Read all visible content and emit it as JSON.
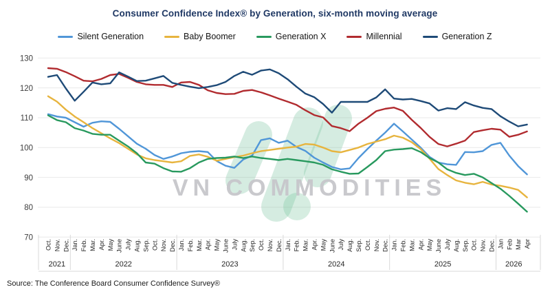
{
  "title": "Consumer Confidence Index® by Generation, six-month moving average",
  "source": "Source: The Conference Board Consumer Confidence Survey®",
  "watermark": {
    "text": "VN COMMODITIES",
    "logo_color": "#77c39d"
  },
  "chart_data": {
    "type": "line",
    "title": "Consumer Confidence Index® by Generation, six-month moving average",
    "xlabel": "",
    "ylabel": "",
    "ylim": [
      70,
      130
    ],
    "y_ticks": [
      70,
      80,
      90,
      100,
      110,
      120,
      130
    ],
    "grid": true,
    "legend_position": "top",
    "x_labels": [
      "Oct.",
      "Nov.",
      "Dec.",
      "Jan.",
      "Feb.",
      "Mar.",
      "Apr.",
      "May",
      "June",
      "July",
      "Aug.",
      "Sep.",
      "Oct.",
      "Nov.",
      "Dec.",
      "Jan.",
      "Feb.",
      "Mar.",
      "Apr.",
      "May",
      "June",
      "July",
      "Aug.",
      "Sep.",
      "Oct.",
      "Nov.",
      "Dec.",
      "Jan.",
      "Feb.",
      "Mar.",
      "Apr.",
      "May",
      "June",
      "July",
      "Aug.",
      "Sep.",
      "Oct.",
      "Nov.",
      "Dec.",
      "Jan.",
      "Feb.",
      "Mar.",
      "Apr.",
      "May",
      "June",
      "July",
      "Aug.",
      "Sep.",
      "Oct.",
      "Nov.",
      "Dec.",
      "Jan",
      "Feb",
      "Mar",
      "Apr"
    ],
    "years": [
      {
        "label": "2021",
        "months": 3
      },
      {
        "label": "2022",
        "months": 12
      },
      {
        "label": "2023",
        "months": 12
      },
      {
        "label": "2024",
        "months": 12
      },
      {
        "label": "2025",
        "months": 12
      },
      {
        "label": "2026",
        "months": 4
      }
    ],
    "series": [
      {
        "name": "Silent Generation",
        "color": "#5096d8",
        "values": [
          111.2,
          110.4,
          110.0,
          108.5,
          107.0,
          108.3,
          108.8,
          108.6,
          106.3,
          103.8,
          101.3,
          99.6,
          97.5,
          96.2,
          97.0,
          98.1,
          98.6,
          98.8,
          98.5,
          95.5,
          93.9,
          93.2,
          96.0,
          97.3,
          102.5,
          103.1,
          101.6,
          102.3,
          100.2,
          98.9,
          96.6,
          95.0,
          93.5,
          92.7,
          93.0,
          96.5,
          99.5,
          102.3,
          105.0,
          108.0,
          105.4,
          102.7,
          100.0,
          96.9,
          95.0,
          94.4,
          94.2,
          98.5,
          98.4,
          98.8,
          100.9,
          101.6,
          97.3,
          93.8,
          91.0
        ]
      },
      {
        "name": "Baby Boomer",
        "color": "#e7b43e",
        "values": [
          117.2,
          115.4,
          112.7,
          110.4,
          108.5,
          106.5,
          104.8,
          103.1,
          101.5,
          99.6,
          97.7,
          96.4,
          95.8,
          95.4,
          95.0,
          95.4,
          97.2,
          97.7,
          96.9,
          95.6,
          96.2,
          96.8,
          97.3,
          98.1,
          98.8,
          99.2,
          99.6,
          100.0,
          100.3,
          101.2,
          101.0,
          100.0,
          98.8,
          98.4,
          99.2,
          100.0,
          101.2,
          102.0,
          102.8,
          104.0,
          103.3,
          101.8,
          99.5,
          96.3,
          92.8,
          90.8,
          89.0,
          88.2,
          87.7,
          88.5,
          87.6,
          87.2,
          86.6,
          85.8,
          83.3
        ]
      },
      {
        "name": "Generation X",
        "color": "#28995e",
        "values": [
          110.8,
          109.2,
          108.5,
          106.5,
          105.7,
          104.6,
          104.3,
          104.3,
          102.3,
          100.4,
          98.1,
          95.0,
          94.6,
          93.1,
          92.0,
          91.9,
          93.1,
          95.0,
          96.2,
          96.5,
          96.6,
          97.0,
          96.5,
          97.0,
          96.5,
          96.2,
          95.8,
          96.2,
          95.8,
          95.4,
          95.0,
          94.2,
          92.7,
          91.9,
          91.2,
          91.3,
          93.5,
          95.8,
          98.8,
          99.3,
          99.5,
          99.8,
          98.5,
          96.5,
          95.0,
          92.7,
          91.5,
          90.8,
          91.2,
          90.0,
          88.1,
          86.2,
          83.8,
          81.2,
          78.5
        ]
      },
      {
        "name": "Millennial",
        "color": "#b12b2f",
        "values": [
          126.6,
          126.4,
          125.3,
          123.9,
          122.4,
          122.2,
          123.0,
          124.3,
          124.7,
          123.4,
          122.0,
          121.2,
          121.0,
          121.0,
          120.3,
          121.8,
          122.0,
          121.0,
          119.2,
          118.3,
          117.9,
          118.0,
          119.0,
          119.3,
          118.5,
          117.5,
          116.4,
          115.4,
          114.3,
          112.5,
          110.9,
          110.1,
          107.2,
          106.5,
          105.5,
          108.0,
          110.0,
          112.2,
          113.0,
          113.4,
          112.3,
          109.3,
          106.6,
          103.6,
          101.2,
          100.4,
          101.3,
          102.3,
          105.2,
          105.8,
          106.3,
          106.0,
          103.6,
          104.3,
          105.4
        ]
      },
      {
        "name": "Generation Z",
        "color": "#1e4a77",
        "values": [
          123.7,
          124.3,
          119.8,
          115.7,
          118.7,
          121.8,
          121.2,
          121.5,
          125.2,
          123.8,
          122.3,
          122.4,
          123.2,
          124.0,
          121.7,
          121.0,
          120.4,
          119.9,
          120.3,
          120.9,
          122.0,
          124.0,
          125.4,
          124.4,
          125.8,
          126.2,
          124.9,
          122.9,
          120.4,
          118.1,
          116.9,
          114.6,
          111.7,
          115.3,
          115.3,
          115.3,
          115.3,
          116.8,
          119.5,
          116.4,
          116.1,
          116.3,
          115.6,
          114.8,
          112.4,
          113.2,
          112.9,
          115.2,
          114.1,
          113.3,
          112.9,
          110.5,
          108.7,
          107.1,
          107.7
        ]
      }
    ]
  }
}
